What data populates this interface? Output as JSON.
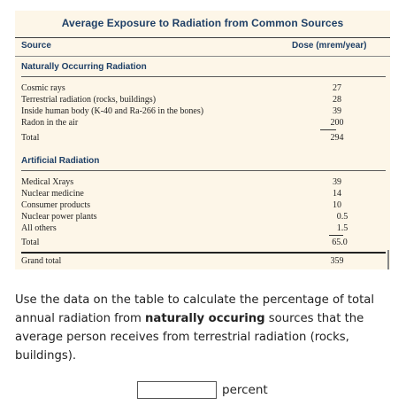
{
  "table": {
    "title": "Average Exposure to Radiation from Common Sources",
    "col_source": "Source",
    "col_dose": "Dose (mrem/year)",
    "natural": {
      "heading": "Naturally Occurring Radiation",
      "rows": [
        {
          "label": "Cosmic rays",
          "value": "27"
        },
        {
          "label": "Terrestrial radiation (rocks, buildings)",
          "value": "28"
        },
        {
          "label": "Inside human body (K-40 and Ra-266 in the bones)",
          "value": "39"
        },
        {
          "label": "Radon in the air",
          "value": "200"
        }
      ],
      "total_label": "Total",
      "total_value": "294"
    },
    "artificial": {
      "heading": "Artificial Radiation",
      "rows": [
        {
          "label": "Medical Xrays",
          "value": "39"
        },
        {
          "label": "Nuclear medicine",
          "value": "14"
        },
        {
          "label": "Consumer products",
          "value": "10"
        },
        {
          "label": "Nuclear power plants",
          "value": "0.5"
        },
        {
          "label": "All others",
          "value": "1.5"
        }
      ],
      "total_label": "Total",
      "total_value": "65.0"
    },
    "grand_total_label": "Grand total",
    "grand_total_value": "359"
  },
  "question": {
    "part1": "Use the data on the table to calculate the percentage of total annual radiation from ",
    "bold": "naturally occuring",
    "part2": " sources that the average person receives from terrestrial radiation (rocks, buildings)."
  },
  "answer": {
    "value": "",
    "unit": "percent"
  }
}
